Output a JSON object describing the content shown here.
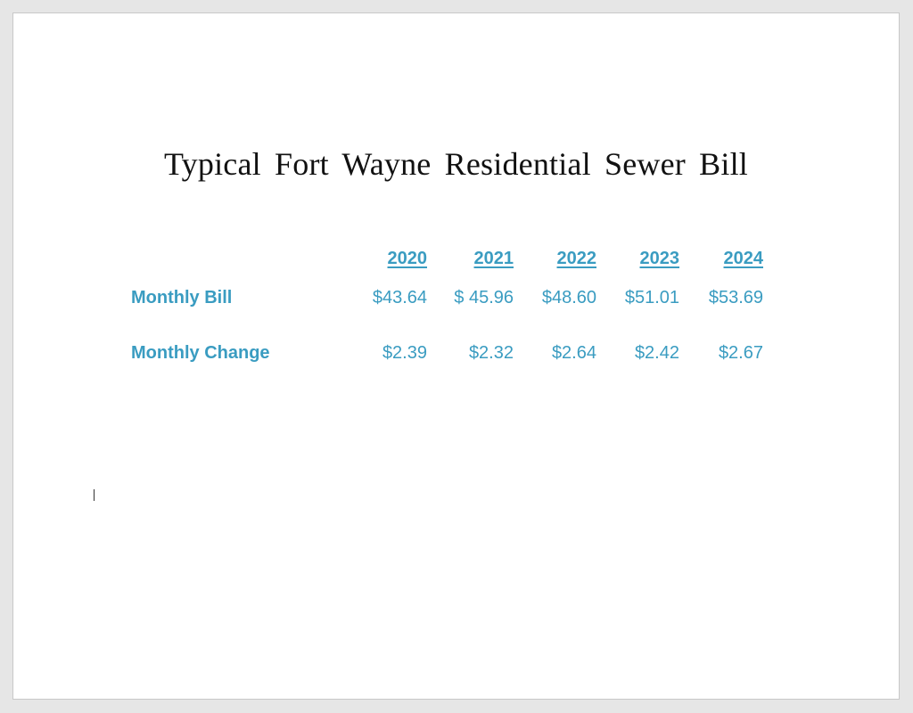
{
  "document": {
    "title": "Typical Fort Wayne Residential Sewer Bill"
  },
  "table": {
    "years": [
      "2020",
      "2021",
      "2022",
      "2023",
      "2024"
    ],
    "rows": [
      {
        "label": "Monthly Bill",
        "values": [
          "$43.64",
          "$ 45.96",
          "$48.60",
          "$51.01",
          "$53.69"
        ]
      },
      {
        "label": "Monthly Change",
        "values": [
          "$2.39",
          "$2.32",
          "$2.64",
          "$2.42",
          "$2.67"
        ]
      }
    ]
  },
  "colors": {
    "table_text": "#3a9cc1",
    "title_text": "#111111",
    "page_background": "#ffffff",
    "canvas_background": "#e6e6e6"
  }
}
